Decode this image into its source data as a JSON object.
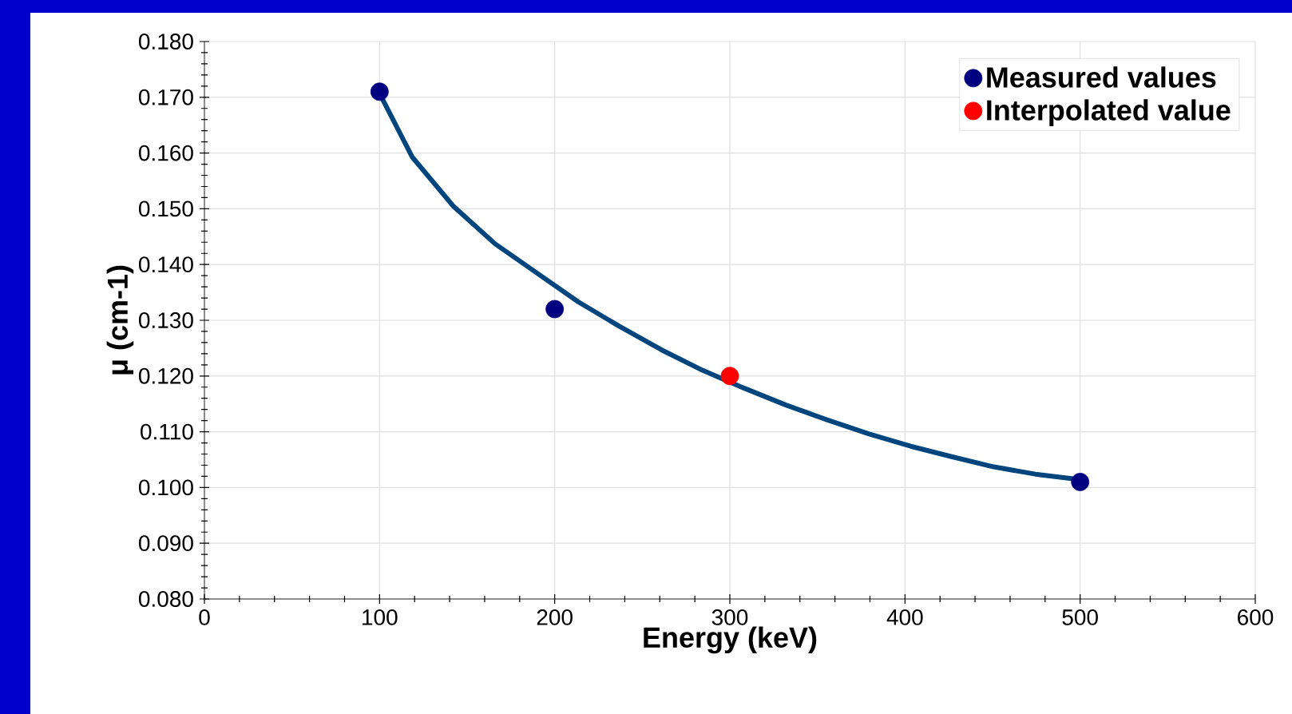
{
  "chart_data": {
    "type": "scatter",
    "xlabel": "Energy (keV)",
    "ylabel": "μ (cm-1)",
    "xlim": [
      0,
      600
    ],
    "xticks": [
      0,
      100,
      200,
      300,
      400,
      500,
      600
    ],
    "ylim": [
      0.08,
      0.18
    ],
    "yticks": [
      {
        "value": 0.08,
        "label": "0.080"
      },
      {
        "value": 0.09,
        "label": "0.090"
      },
      {
        "value": 0.1,
        "label": "0.100"
      },
      {
        "value": 0.11,
        "label": "0.110"
      },
      {
        "value": 0.12,
        "label": "0.120"
      },
      {
        "value": 0.13,
        "label": "0.130"
      },
      {
        "value": 0.14,
        "label": "0.140"
      },
      {
        "value": 0.15,
        "label": "0.150"
      },
      {
        "value": 0.16,
        "label": "0.160"
      },
      {
        "value": 0.17,
        "label": "0.170"
      },
      {
        "value": 0.18,
        "label": "0.180"
      }
    ],
    "grid": true,
    "legend": "top right",
    "marker": "circle",
    "series": [
      {
        "type": "line",
        "color": "#00457d",
        "marker": "none",
        "x": [
          100,
          118.6,
          142.3,
          166,
          189.7,
          213.5,
          237,
          260.9,
          284.6,
          308.3,
          332,
          355.8,
          379.5,
          403.2,
          427,
          450.7,
          474.4,
          498
        ],
        "values": [
          0.1707,
          0.1593,
          0.1504,
          0.1437,
          0.1385,
          0.1333,
          0.1289,
          0.1247,
          0.121,
          0.1178,
          0.1148,
          0.1121,
          0.1096,
          0.1074,
          0.1055,
          0.1037,
          0.1024,
          0.1015
        ]
      },
      {
        "name": "Measured values",
        "color": "#000080",
        "x": [
          100,
          200,
          500
        ],
        "values": [
          0.171,
          0.132,
          0.101
        ]
      },
      {
        "name": "Interpolated value",
        "color": "#ff0000",
        "x": [
          300
        ],
        "values": [
          0.12
        ]
      }
    ]
  }
}
